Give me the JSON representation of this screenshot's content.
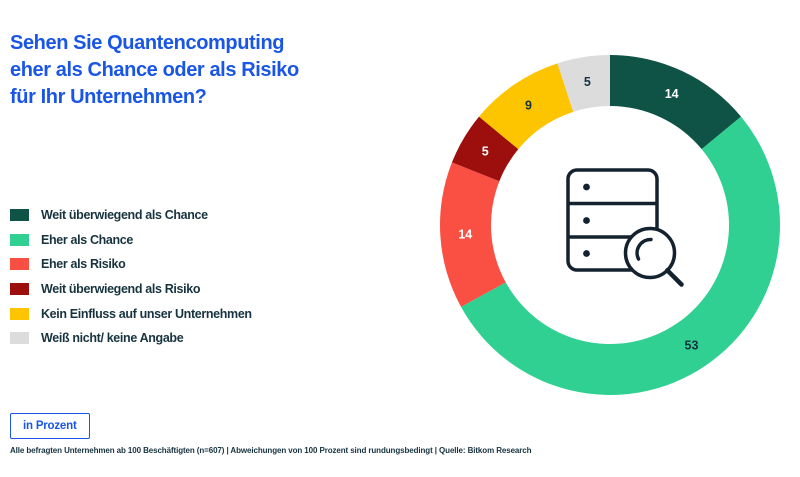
{
  "header": {
    "title_line1": "Sehen Sie Quantencomputing",
    "title_line2": "eher als Chance oder als Risiko",
    "title_line3": "für Ihr Unternehmen?"
  },
  "chart_data": {
    "type": "pie",
    "subtype": "donut",
    "unit": "Prozent",
    "start_angle_deg": 0,
    "direction": "clockwise",
    "legend_position": "left",
    "center_icon": "database-search",
    "segments": [
      {
        "label": "Weit überwiegend als Chance",
        "value": 14,
        "color": "#0f5347",
        "label_color": "#ffffff"
      },
      {
        "label": "Eher als Chance",
        "value": 53,
        "color": "#2fd091",
        "label_color": "#17333f"
      },
      {
        "label": "Eher als Risiko",
        "value": 14,
        "color": "#fa4f43",
        "label_color": "#ffffff"
      },
      {
        "label": "Weit überwiegend als Risiko",
        "value": 5,
        "color": "#9c0f0d",
        "label_color": "#ffffff"
      },
      {
        "label": "Kein Einfluss auf unser Unternehmen",
        "value": 9,
        "color": "#fdc400",
        "label_color": "#17333f"
      },
      {
        "label": "Weiß nicht/ keine Angabe",
        "value": 5,
        "color": "#dcdcdc",
        "label_color": "#17333f"
      }
    ]
  },
  "footer": {
    "button_label": "in Prozent",
    "note": "Alle befragten Unternehmen ab 100 Beschäftigten (n=607) | Abweichungen von 100 Prozent sind rundungsbedingt | Quelle: Bitkom Research"
  },
  "colors": {
    "accent_blue": "#1a56e6",
    "text_dark": "#17333f",
    "icon_stroke": "#13222e"
  }
}
